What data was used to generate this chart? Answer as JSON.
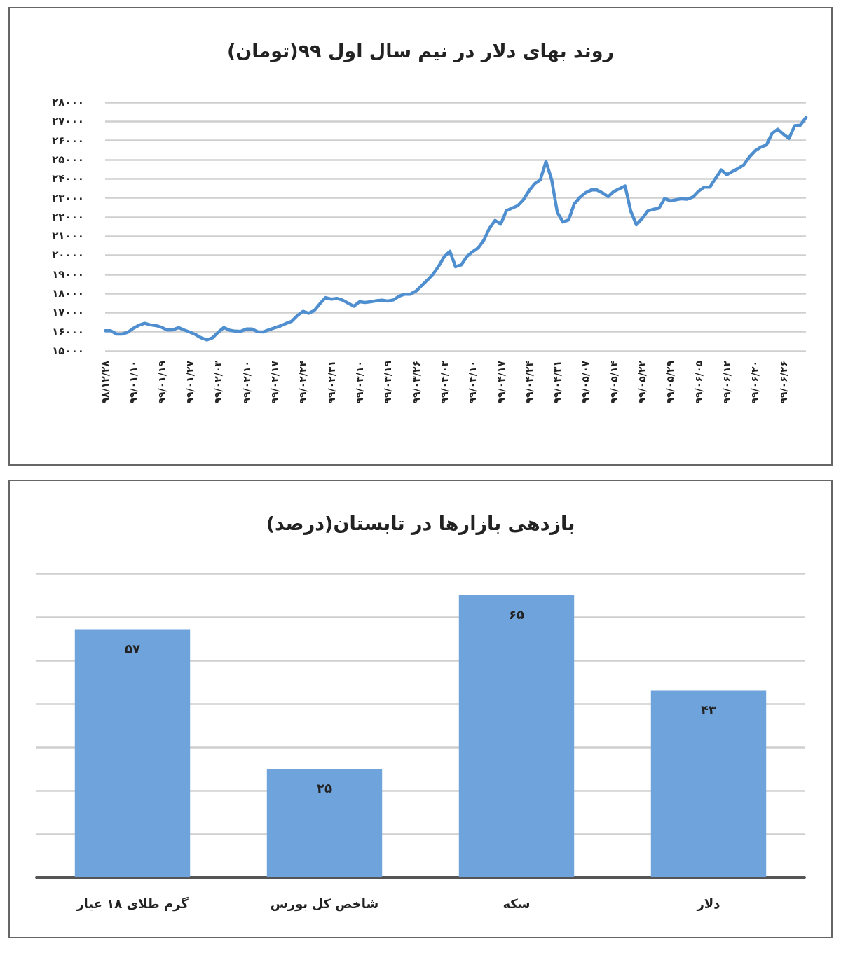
{
  "chart_data": [
    {
      "type": "line",
      "title": "روند بهای دلار در نیم سال اول ۹۹(تومان)",
      "color": "#4f8fd0",
      "grid": "y",
      "ylim": [
        15000,
        28000
      ],
      "categories": [
        "۹۸/۱۲/۲۸",
        null,
        null,
        null,
        null,
        "۹۹/۰۱/۱۰",
        null,
        null,
        null,
        null,
        "۹۹/۰۱/۱۹",
        null,
        null,
        null,
        null,
        "۹۹/۰۱/۲۷",
        null,
        null,
        null,
        null,
        "۹۹/۰۲/۰۳",
        null,
        null,
        null,
        null,
        "۹۹/۰۲/۱۰",
        null,
        null,
        null,
        null,
        "۹۹/۰۲/۱۷",
        null,
        null,
        null,
        null,
        "۹۹/۰۲/۲۴",
        null,
        null,
        null,
        null,
        "۹۹/۰۲/۳۱",
        null,
        null,
        null,
        null,
        "۹۹/۰۳/۱۰",
        null,
        null,
        null,
        null,
        "۹۹/۰۳/۱۹",
        null,
        null,
        null,
        null,
        "۹۹/۰۳/۲۶",
        null,
        null,
        null,
        null,
        "۹۹/۰۴/۰۳",
        null,
        null,
        null,
        null,
        "۹۹/۰۴/۱۰",
        null,
        null,
        null,
        null,
        "۹۹/۰۴/۱۷",
        null,
        null,
        null,
        null,
        "۹۹/۰۴/۲۴",
        null,
        null,
        null,
        null,
        "۹۹/۰۴/۳۱",
        null,
        null,
        null,
        null,
        "۹۹/۰۵/۰۷",
        null,
        null,
        null,
        null,
        "۹۹/۰۵/۱۴",
        null,
        null,
        null,
        null,
        "۹۹/۰۵/۲۲",
        null,
        null,
        null,
        null,
        "۹۹/۰۵/۲۹",
        null,
        null,
        null,
        null,
        "۹۹/۰۶/۰۵",
        null,
        null,
        null,
        null,
        "۹۹/۰۶/۱۲",
        null,
        null,
        null,
        null,
        "۹۹/۰۶/۲۰",
        null,
        null,
        null,
        null,
        "۹۹/۰۶/۲۶",
        null,
        null,
        null,
        null
      ],
      "values": [
        16050,
        16050,
        15880,
        15880,
        15970,
        16180,
        16340,
        16440,
        16360,
        16320,
        16230,
        16090,
        16100,
        16210,
        16090,
        15980,
        15850,
        15680,
        15570,
        15680,
        15970,
        16220,
        16080,
        16030,
        16020,
        16140,
        16140,
        16000,
        15990,
        16100,
        16200,
        16300,
        16430,
        16540,
        16840,
        17060,
        16960,
        17100,
        17460,
        17780,
        17700,
        17740,
        17650,
        17490,
        17330,
        17560,
        17530,
        17560,
        17620,
        17650,
        17600,
        17660,
        17850,
        17960,
        17960,
        18120,
        18410,
        18690,
        19000,
        19420,
        19920,
        20200,
        19400,
        19490,
        19930,
        20180,
        20380,
        20780,
        21410,
        21820,
        21620,
        22330,
        22460,
        22590,
        22900,
        23370,
        23740,
        23940,
        24900,
        23960,
        22250,
        21730,
        21840,
        22680,
        23030,
        23270,
        23410,
        23410,
        23260,
        23060,
        23330,
        23480,
        23620,
        22300,
        21590,
        21910,
        22310,
        22400,
        22460,
        22970,
        22840,
        22900,
        22950,
        22930,
        23040,
        23350,
        23560,
        23560,
        24020,
        24460,
        24210,
        24380,
        24540,
        24720,
        25140,
        25460,
        25650,
        25760,
        26370,
        26590,
        26330,
        26110,
        26770,
        26800,
        27200
      ],
      "yticks": [
        {
          "value": 15000,
          "label": "۱۵۰۰۰"
        },
        {
          "value": 16000,
          "label": "۱۶۰۰۰"
        },
        {
          "value": 17000,
          "label": "۱۷۰۰۰"
        },
        {
          "value": 18000,
          "label": "۱۸۰۰۰"
        },
        {
          "value": 19000,
          "label": "۱۹۰۰۰"
        },
        {
          "value": 20000,
          "label": "۲۰۰۰۰"
        },
        {
          "value": 21000,
          "label": "۲۱۰۰۰"
        },
        {
          "value": 22000,
          "label": "۲۲۰۰۰"
        },
        {
          "value": 23000,
          "label": "۲۳۰۰۰"
        },
        {
          "value": 24000,
          "label": "۲۴۰۰۰"
        },
        {
          "value": 25000,
          "label": "۲۵۰۰۰"
        },
        {
          "value": 26000,
          "label": "۲۶۰۰۰"
        },
        {
          "value": 27000,
          "label": "۲۷۰۰۰"
        },
        {
          "value": 28000,
          "label": "۲۸۰۰۰"
        }
      ]
    },
    {
      "type": "bar",
      "title": "بازدهی بازارها در تابستان(درصد)",
      "color": "#6fa3db",
      "grid": "y",
      "tick_labels": "x",
      "categories": [
        "گرم طلای ۱۸ عیار",
        "شاخص کل بورس",
        "سکه",
        "دلار"
      ],
      "values": [
        57,
        25,
        65,
        43
      ],
      "value_labels": [
        "۵۷",
        "۲۵",
        "۶۵",
        "۴۳"
      ],
      "ylim": [
        0,
        70
      ],
      "yticks": [
        {
          "value": 0,
          "label": null
        },
        {
          "value": 10,
          "label": null
        },
        {
          "value": 20,
          "label": null
        },
        {
          "value": 30,
          "label": null
        },
        {
          "value": 40,
          "label": null
        },
        {
          "value": 50,
          "label": null
        },
        {
          "value": 60,
          "label": null
        },
        {
          "value": 70,
          "label": null
        }
      ]
    }
  ]
}
